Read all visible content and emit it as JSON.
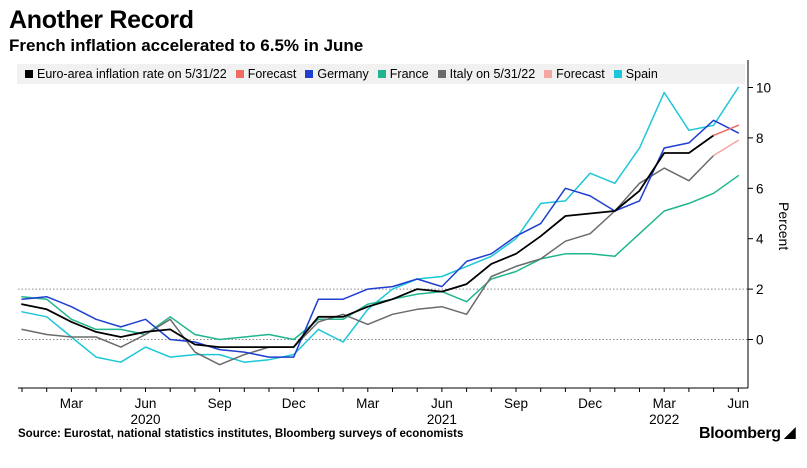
{
  "header": {
    "title": "Another Record",
    "subtitle": "French inflation accelerated to 6.5% in June"
  },
  "legend": [
    {
      "label": "Euro-area inflation rate on 5/31/22",
      "color": "#000000"
    },
    {
      "label": "Forecast",
      "color": "#f06a68"
    },
    {
      "label": "Germany",
      "color": "#1f3fd1"
    },
    {
      "label": "France",
      "color": "#1fb58f"
    },
    {
      "label": "Italy on 5/31/22",
      "color": "#6b6b6b"
    },
    {
      "label": "Forecast",
      "color": "#f5a6a3"
    },
    {
      "label": "Spain",
      "color": "#1cc7d8"
    }
  ],
  "footer": {
    "source": "Source: Eurostat, national statistics institutes, Bloomberg surveys of economists",
    "logo": "Bloomberg"
  },
  "chart_data": {
    "type": "line",
    "x": [
      "2020-01",
      "2020-02",
      "2020-03",
      "2020-04",
      "2020-05",
      "2020-06",
      "2020-07",
      "2020-08",
      "2020-09",
      "2020-10",
      "2020-11",
      "2020-12",
      "2021-01",
      "2021-02",
      "2021-03",
      "2021-04",
      "2021-05",
      "2021-06",
      "2021-07",
      "2021-08",
      "2021-09",
      "2021-10",
      "2021-11",
      "2021-12",
      "2022-01",
      "2022-02",
      "2022-03",
      "2022-04",
      "2022-05",
      "2022-06"
    ],
    "x_tick_labels": [
      {
        "month": "2020-03",
        "label": "Mar",
        "year": ""
      },
      {
        "month": "2020-06",
        "label": "Jun",
        "year": "2020"
      },
      {
        "month": "2020-09",
        "label": "Sep",
        "year": ""
      },
      {
        "month": "2020-12",
        "label": "Dec",
        "year": ""
      },
      {
        "month": "2021-03",
        "label": "Mar",
        "year": ""
      },
      {
        "month": "2021-06",
        "label": "Jun",
        "year": "2021"
      },
      {
        "month": "2021-09",
        "label": "Sep",
        "year": ""
      },
      {
        "month": "2021-12",
        "label": "Dec",
        "year": ""
      },
      {
        "month": "2022-03",
        "label": "Mar",
        "year": "2022"
      },
      {
        "month": "2022-06",
        "label": "Jun",
        "year": ""
      }
    ],
    "ylabel": "Percent",
    "ylim": [
      -2,
      11
    ],
    "y_ticks": [
      0,
      2,
      4,
      6,
      8,
      10
    ],
    "y_dotted_lines": [
      0,
      2
    ],
    "y_axis_position": "right",
    "series": [
      {
        "name": "Euro-area inflation rate on 5/31/22",
        "color": "#000000",
        "values": [
          1.4,
          1.2,
          0.7,
          0.3,
          0.1,
          0.3,
          0.4,
          -0.2,
          -0.3,
          -0.3,
          -0.3,
          -0.3,
          0.9,
          0.9,
          1.3,
          1.6,
          2.0,
          1.9,
          2.2,
          3.0,
          3.4,
          4.1,
          4.9,
          5.0,
          5.1,
          5.9,
          7.4,
          7.4,
          8.1,
          null
        ]
      },
      {
        "name": "Forecast",
        "color": "#f06a68",
        "values": [
          null,
          null,
          null,
          null,
          null,
          null,
          null,
          null,
          null,
          null,
          null,
          null,
          null,
          null,
          null,
          null,
          null,
          null,
          null,
          null,
          null,
          null,
          null,
          null,
          null,
          null,
          null,
          null,
          8.1,
          8.5
        ]
      },
      {
        "name": "Germany",
        "color": "#1f3fd1",
        "values": [
          1.6,
          1.7,
          1.3,
          0.8,
          0.5,
          0.8,
          0.0,
          -0.1,
          -0.4,
          -0.5,
          -0.7,
          -0.7,
          1.6,
          1.6,
          2.0,
          2.1,
          2.4,
          2.1,
          3.1,
          3.4,
          4.1,
          4.6,
          6.0,
          5.7,
          5.1,
          5.5,
          7.6,
          7.8,
          8.7,
          8.2
        ]
      },
      {
        "name": "France",
        "color": "#1fb58f",
        "values": [
          1.7,
          1.6,
          0.8,
          0.4,
          0.4,
          0.2,
          0.9,
          0.2,
          0.0,
          0.1,
          0.2,
          0.0,
          0.8,
          0.8,
          1.4,
          1.6,
          1.8,
          1.9,
          1.5,
          2.4,
          2.7,
          3.2,
          3.4,
          3.4,
          3.3,
          4.2,
          5.1,
          5.4,
          5.8,
          6.5
        ]
      },
      {
        "name": "Italy on 5/31/22",
        "color": "#6b6b6b",
        "values": [
          0.4,
          0.2,
          0.1,
          0.1,
          -0.3,
          0.2,
          0.8,
          -0.5,
          -1.0,
          -0.6,
          -0.3,
          -0.3,
          0.7,
          1.0,
          0.6,
          1.0,
          1.2,
          1.3,
          1.0,
          2.5,
          2.9,
          3.2,
          3.9,
          4.2,
          5.1,
          6.2,
          6.8,
          6.3,
          7.3,
          null
        ]
      },
      {
        "name": "Forecast",
        "color": "#f5a6a3",
        "values": [
          null,
          null,
          null,
          null,
          null,
          null,
          null,
          null,
          null,
          null,
          null,
          null,
          null,
          null,
          null,
          null,
          null,
          null,
          null,
          null,
          null,
          null,
          null,
          null,
          null,
          null,
          null,
          null,
          7.3,
          7.9
        ]
      },
      {
        "name": "Spain",
        "color": "#1cc7d8",
        "values": [
          1.1,
          0.9,
          0.1,
          -0.7,
          -0.9,
          -0.3,
          -0.7,
          -0.6,
          -0.6,
          -0.9,
          -0.8,
          -0.6,
          0.4,
          -0.1,
          1.2,
          2.0,
          2.4,
          2.5,
          2.9,
          3.3,
          4.0,
          5.4,
          5.5,
          6.6,
          6.2,
          7.6,
          9.8,
          8.3,
          8.5,
          10.0
        ]
      }
    ]
  }
}
